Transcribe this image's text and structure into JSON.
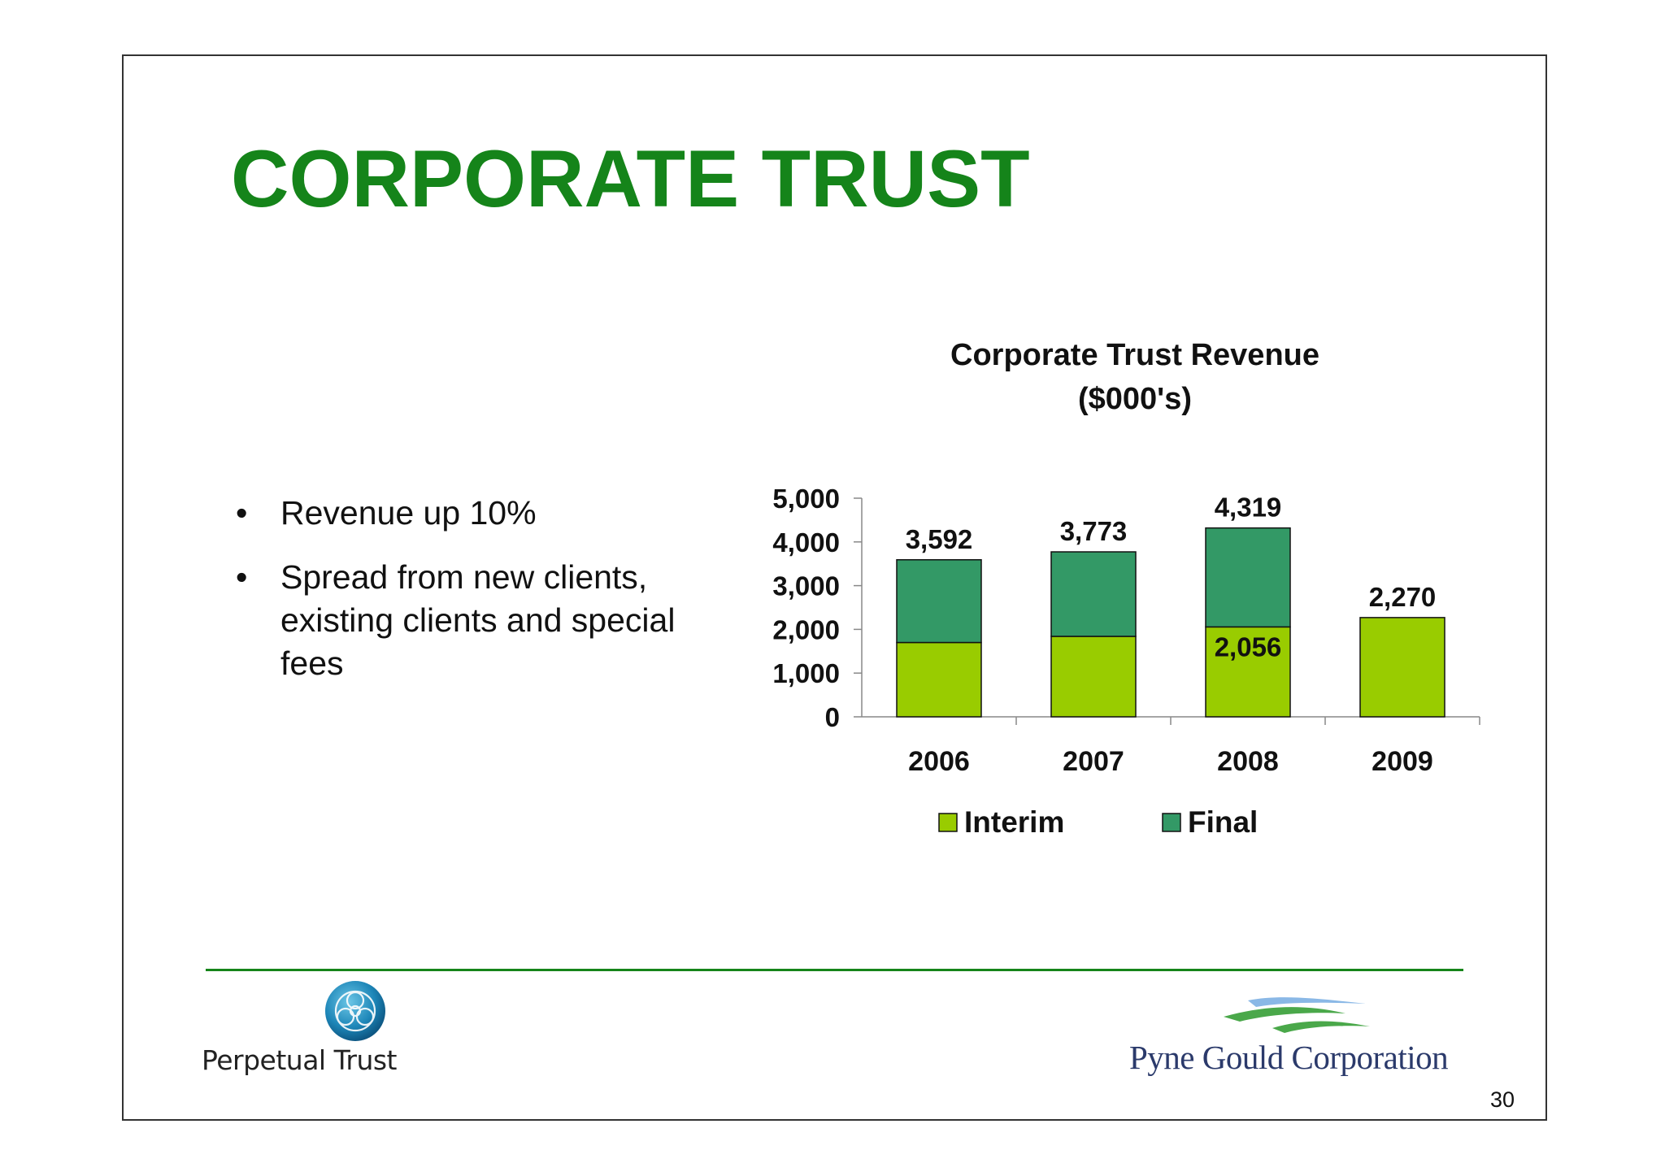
{
  "slide": {
    "title": "CORPORATE TRUST",
    "bullets": [
      "Revenue up 10%",
      "Spread from new clients, existing clients and special fees"
    ],
    "page_number": "30"
  },
  "logos": {
    "left": {
      "name": "Perpetual Trust",
      "icon": "celtic-knot-emblem-icon"
    },
    "right": {
      "name": "Pyne Gould Corporation",
      "icon": "waves-icon"
    }
  },
  "colors": {
    "title": "#15841a",
    "interim": "#99cc00",
    "final": "#339966",
    "rule": "#15841a"
  },
  "chart_data": {
    "type": "bar",
    "stacked": true,
    "title": "Corporate Trust Revenue",
    "subtitle": "($000's)",
    "categories": [
      "2006",
      "2007",
      "2008",
      "2009"
    ],
    "series": [
      {
        "name": "Interim",
        "values": [
          1700,
          1840,
          2056,
          2270
        ]
      },
      {
        "name": "Final",
        "values": [
          1892,
          1933,
          2263,
          0
        ]
      }
    ],
    "totals": [
      3592,
      3773,
      4319,
      2270
    ],
    "total_labels": [
      "3,592",
      "3,773",
      "4,319",
      "2,270"
    ],
    "interim_labels": [
      "",
      "",
      "2,056",
      ""
    ],
    "ylim": [
      0,
      5000
    ],
    "yticks": [
      0,
      1000,
      2000,
      3000,
      4000,
      5000
    ],
    "ytick_labels": [
      "0",
      "1,000",
      "2,000",
      "3,000",
      "4,000",
      "5,000"
    ],
    "xlabel": "",
    "ylabel": "",
    "grid": false,
    "legend_position": "bottom"
  }
}
